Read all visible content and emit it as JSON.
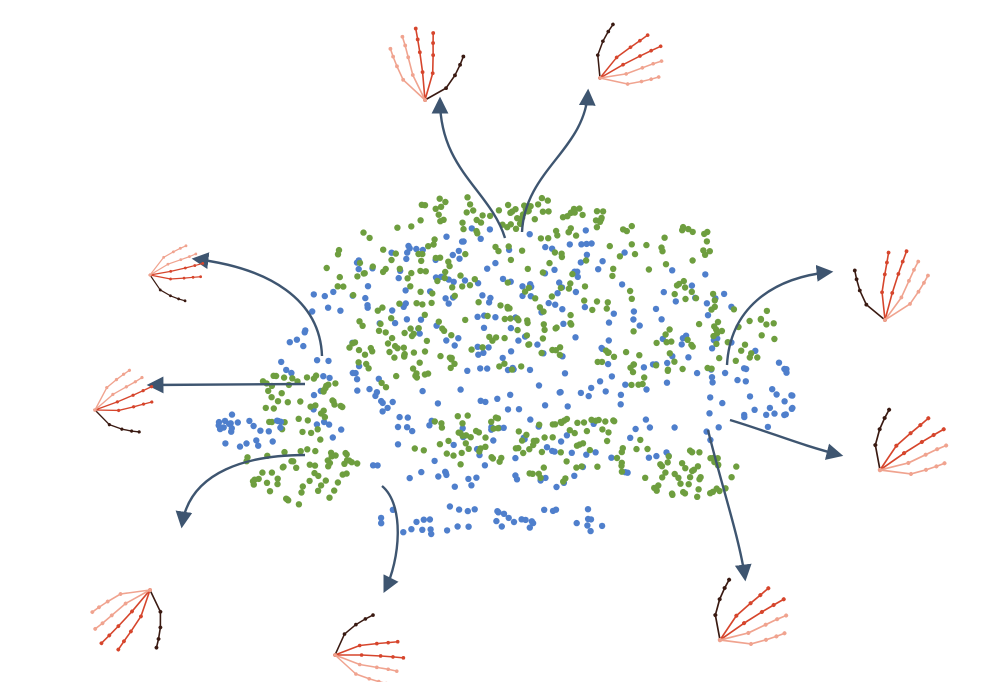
{
  "figure": {
    "title": "",
    "colors": {
      "point_a": "#4f7fcc",
      "point_b": "#6e9e3f",
      "arrow": "#3e5570",
      "hand_dark": "#3a1a12",
      "hand_mid": "#d6452c",
      "hand_light": "#f0a38f"
    },
    "scatter_series": [
      {
        "name": "blue-points",
        "color": "#4f7fcc",
        "approx_count": 420
      },
      {
        "name": "green-points",
        "color": "#6e9e3f",
        "approx_count": 480
      }
    ],
    "hand_pose_callouts": [
      {
        "name": "hand-pose-top-left",
        "icon": "hand-skeleton-icon"
      },
      {
        "name": "hand-pose-top-right",
        "icon": "hand-skeleton-icon"
      },
      {
        "name": "hand-pose-upper-left",
        "icon": "hand-skeleton-icon"
      },
      {
        "name": "hand-pose-left",
        "icon": "hand-skeleton-icon"
      },
      {
        "name": "hand-pose-lower-left",
        "icon": "hand-skeleton-icon"
      },
      {
        "name": "hand-pose-bottom-center",
        "icon": "hand-skeleton-icon"
      },
      {
        "name": "hand-pose-upper-right",
        "icon": "hand-skeleton-icon"
      },
      {
        "name": "hand-pose-right",
        "icon": "hand-skeleton-icon"
      },
      {
        "name": "hand-pose-bottom-right",
        "icon": "hand-skeleton-icon"
      }
    ]
  }
}
